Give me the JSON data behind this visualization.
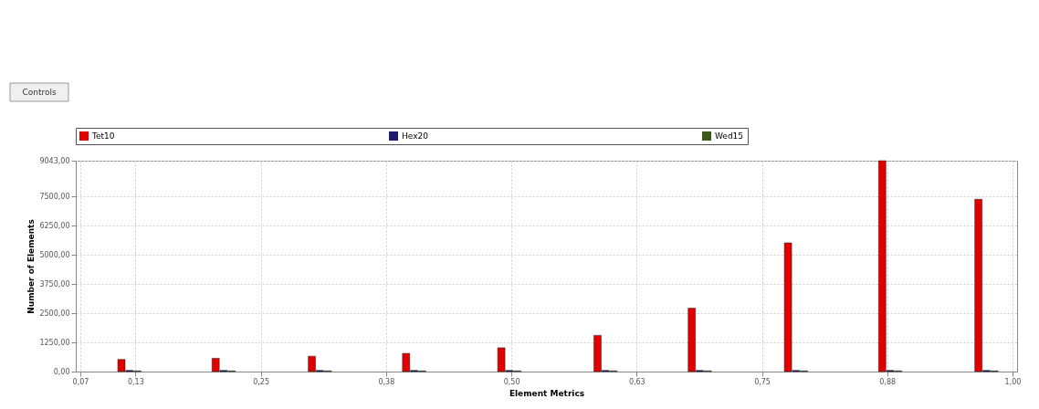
{
  "chart_data": {
    "type": "bar",
    "xlabel": "Element Metrics",
    "ylabel": "Number of Elements",
    "annotations": [
      "Controls"
    ],
    "series": [
      {
        "name": "Tet10",
        "color": "#e00000",
        "x": [
          0.111,
          0.205,
          0.301,
          0.395,
          0.49,
          0.586,
          0.68,
          0.776,
          0.87,
          0.966
        ],
        "values": [
          520,
          570,
          660,
          780,
          1020,
          1550,
          2720,
          5520,
          9043,
          7390
        ]
      },
      {
        "name": "Hex20",
        "color": "#1a1a6e",
        "x": [
          0.119,
          0.213,
          0.309,
          0.403,
          0.498,
          0.594,
          0.688,
          0.784,
          0.878,
          0.974
        ],
        "values": [
          50,
          50,
          50,
          50,
          50,
          50,
          50,
          50,
          50,
          50
        ]
      },
      {
        "name": "Wed15",
        "color": "#3a5a1a",
        "x": [
          0.127,
          0.221,
          0.317,
          0.411,
          0.506,
          0.602,
          0.696,
          0.792,
          0.886,
          0.982
        ],
        "values": [
          30,
          30,
          30,
          30,
          30,
          30,
          30,
          30,
          30,
          30
        ]
      }
    ],
    "xlim": [
      0.07,
      1.0
    ],
    "xticks": [
      {
        "value": 0.07,
        "label": "0,07"
      },
      {
        "value": 0.125,
        "label": "0,13"
      },
      {
        "value": 0.25,
        "label": "0,25"
      },
      {
        "value": 0.375,
        "label": "0,38"
      },
      {
        "value": 0.5,
        "label": "0,50"
      },
      {
        "value": 0.625,
        "label": "0,63"
      },
      {
        "value": 0.75,
        "label": "0,75"
      },
      {
        "value": 0.875,
        "label": "0,88"
      },
      {
        "value": 1.0,
        "label": "1,00"
      }
    ],
    "ylim": [
      0,
      9043
    ],
    "yticks": [
      {
        "value": 0,
        "label": "0,00"
      },
      {
        "value": 1250,
        "label": "1250,00"
      },
      {
        "value": 2500,
        "label": "2500,00"
      },
      {
        "value": 3750,
        "label": "3750,00"
      },
      {
        "value": 5000,
        "label": "5000,00"
      },
      {
        "value": 6250,
        "label": "6250,00"
      },
      {
        "value": 7500,
        "label": "7500,00"
      },
      {
        "value": 9043,
        "label": "9043,00"
      }
    ],
    "grid": true,
    "legend": "top"
  }
}
